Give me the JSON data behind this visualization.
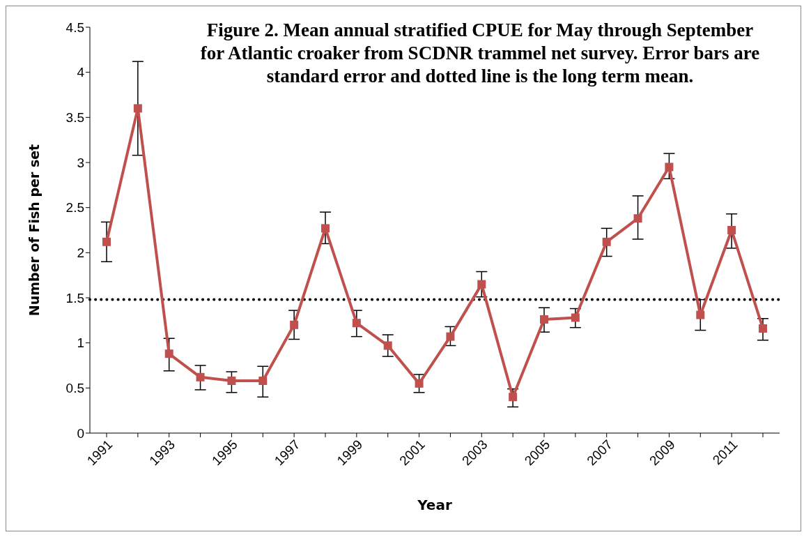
{
  "chart_data": {
    "type": "line",
    "title": "Figure 2.  Mean annual stratified CPUE for May through September for Atlantic croaker from SCDNR trammel net survey. Error bars are standard error and dotted line is the long term mean.",
    "xlabel": "Year",
    "ylabel": "Number of Fish per set",
    "categories": [
      "1991",
      null,
      "1993",
      null,
      "1995",
      null,
      "1997",
      null,
      "1999",
      null,
      "2001",
      null,
      "2003",
      null,
      "2005",
      null,
      "2007",
      null,
      "2009",
      null,
      "2011",
      null
    ],
    "series": [
      {
        "color": "#c0504d",
        "values": [
          2.12,
          3.6,
          0.88,
          0.62,
          0.58,
          0.58,
          1.2,
          2.27,
          1.22,
          0.97,
          0.55,
          1.07,
          1.65,
          0.4,
          1.26,
          1.28,
          2.12,
          2.38,
          2.95,
          1.31,
          2.25,
          1.16
        ],
        "errors": [
          [
            1.9,
            2.34
          ],
          [
            3.08,
            4.12
          ],
          [
            0.69,
            1.05
          ],
          [
            0.48,
            0.75
          ],
          [
            0.45,
            0.68
          ],
          [
            0.4,
            0.74
          ],
          [
            1.04,
            1.36
          ],
          [
            2.1,
            2.45
          ],
          [
            1.07,
            1.36
          ],
          [
            0.85,
            1.09
          ],
          [
            0.45,
            0.65
          ],
          [
            0.97,
            1.18
          ],
          [
            1.51,
            1.79
          ],
          [
            0.29,
            0.49
          ],
          [
            1.12,
            1.39
          ],
          [
            1.17,
            1.38
          ],
          [
            1.96,
            2.27
          ],
          [
            2.15,
            2.63
          ],
          [
            2.82,
            3.1
          ],
          [
            1.14,
            1.48
          ],
          [
            2.05,
            2.43
          ],
          [
            1.03,
            1.27
          ]
        ]
      }
    ],
    "ylim": [
      0,
      4.5
    ],
    "yticks": [
      0,
      0.5,
      1,
      1.5,
      2,
      2.5,
      3,
      3.5,
      4,
      4.5
    ],
    "ref_lines": [
      {
        "axis": "y",
        "value": 1.48,
        "color": "#000000",
        "line_style": "dotted"
      }
    ],
    "marker": "square",
    "line_style": "solid",
    "grid": false
  }
}
